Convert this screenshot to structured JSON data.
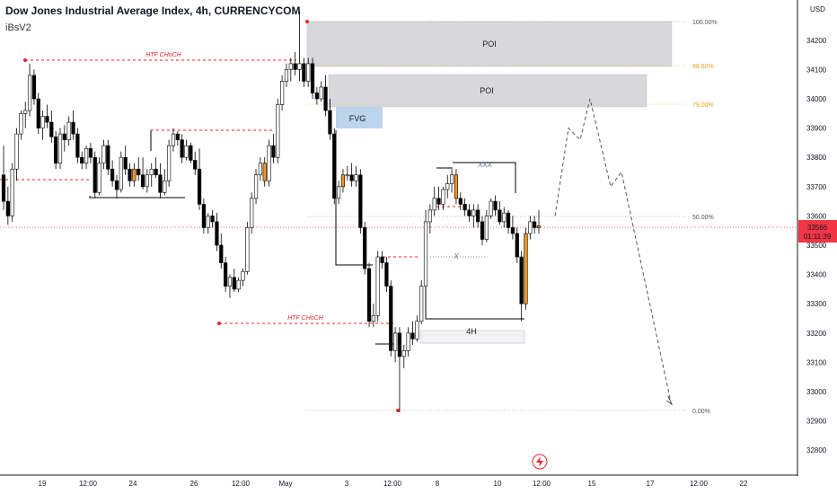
{
  "header": {
    "title": "Dow Jones Industrial Average Index, 4h, CURRENCYCOM",
    "indicator": "iBsV2"
  },
  "price_axis": {
    "currency": "USD",
    "ticks": [
      "34200",
      "34100",
      "34000",
      "33900",
      "33800",
      "33700",
      "33600",
      "33500",
      "33400",
      "33300",
      "33200",
      "33100",
      "33000",
      "32900",
      "32800"
    ],
    "last_price": "33566",
    "countdown": "01:11:39",
    "last_price_color": "#f23645"
  },
  "time_axis": {
    "labels": [
      "19",
      "12:00",
      "24",
      "26",
      "12:00",
      "May",
      "3",
      "12:00",
      "8",
      "10",
      "12:00",
      "15",
      "17",
      "12:00",
      "22"
    ]
  },
  "colors": {
    "up": "#ffffff",
    "down": "#000000",
    "highlight": "#f7941d",
    "htf": "#e8252b",
    "poi": "#d8d8dc",
    "fvg": "#bcd4ec",
    "fib": "#8a8a8a",
    "fib_gold": "#f0a21b"
  },
  "annotations": {
    "htf_choch_top": "HTF CHoCH",
    "htf_choch_bottom": "HTF CHoCH",
    "poi_upper": "POI",
    "poi_lower": "POI",
    "fvg": "FVG",
    "xxx": "XXX",
    "x": "X",
    "range_4h": "4H",
    "fib_100": "100.00%",
    "fib_886": "88.60%",
    "fib_79": "79.00%",
    "fib_50": "50.00%",
    "fib_0": "0.00%"
  },
  "chart_data": {
    "type": "candlestick",
    "title": "Dow Jones Industrial Average Index, 4h, CURRENCYCOM",
    "y_unit": "USD",
    "ylim": [
      32700,
      34300
    ],
    "fib_levels": {
      "100.00%": 34300,
      "88.60%": 34144,
      "79.00%": 34012,
      "50.00%": 33615,
      "0.00%": 32930
    },
    "candles": [
      [
        33740,
        33840,
        33620,
        33650
      ],
      [
        33650,
        33700,
        33570,
        33600
      ],
      [
        33600,
        33780,
        33580,
        33760
      ],
      [
        33760,
        33900,
        33720,
        33880
      ],
      [
        33880,
        33960,
        33860,
        33950
      ],
      [
        33950,
        33990,
        33900,
        33960
      ],
      [
        33960,
        34120,
        33940,
        34080
      ],
      [
        34080,
        34100,
        33980,
        34000
      ],
      [
        34000,
        34020,
        33880,
        33900
      ],
      [
        33900,
        33960,
        33860,
        33940
      ],
      [
        33940,
        33980,
        33900,
        33920
      ],
      [
        33920,
        33960,
        33850,
        33870
      ],
      [
        33870,
        33890,
        33760,
        33780
      ],
      [
        33780,
        33900,
        33760,
        33880
      ],
      [
        33880,
        33910,
        33820,
        33860
      ],
      [
        33860,
        33940,
        33840,
        33920
      ],
      [
        33920,
        33960,
        33860,
        33880
      ],
      [
        33880,
        33900,
        33780,
        33800
      ],
      [
        33800,
        33820,
        33760,
        33780
      ],
      [
        33780,
        33840,
        33760,
        33830
      ],
      [
        33830,
        33850,
        33780,
        33800
      ],
      [
        33800,
        33820,
        33660,
        33680
      ],
      [
        33680,
        33800,
        33670,
        33780
      ],
      [
        33780,
        33860,
        33760,
        33840
      ],
      [
        33840,
        33860,
        33740,
        33760
      ],
      [
        33760,
        33790,
        33700,
        33720
      ],
      [
        33720,
        33740,
        33660,
        33690
      ],
      [
        33690,
        33820,
        33680,
        33800
      ],
      [
        33800,
        33840,
        33740,
        33760
      ],
      [
        33760,
        33780,
        33700,
        33720
      ],
      [
        33720,
        33780,
        33700,
        33760
      ],
      [
        33760,
        33800,
        33720,
        33740
      ],
      [
        33740,
        33800,
        33690,
        33700
      ],
      [
        33700,
        33760,
        33680,
        33740
      ],
      [
        33740,
        33780,
        33700,
        33760
      ],
      [
        33760,
        33800,
        33730,
        33740
      ],
      [
        33740,
        33780,
        33660,
        33680
      ],
      [
        33680,
        33760,
        33670,
        33720
      ],
      [
        33720,
        33860,
        33700,
        33840
      ],
      [
        33840,
        33900,
        33820,
        33880
      ],
      [
        33880,
        33890,
        33840,
        33860
      ],
      [
        33860,
        33880,
        33780,
        33800
      ],
      [
        33800,
        33860,
        33790,
        33840
      ],
      [
        33840,
        33850,
        33780,
        33790
      ],
      [
        33790,
        33820,
        33740,
        33760
      ],
      [
        33760,
        33830,
        33620,
        33640
      ],
      [
        33640,
        33660,
        33540,
        33560
      ],
      [
        33560,
        33610,
        33540,
        33600
      ],
      [
        33600,
        33620,
        33560,
        33580
      ],
      [
        33580,
        33610,
        33480,
        33500
      ],
      [
        33500,
        33540,
        33420,
        33440
      ],
      [
        33440,
        33460,
        33340,
        33360
      ],
      [
        33360,
        33400,
        33320,
        33390
      ],
      [
        33390,
        33420,
        33340,
        33350
      ],
      [
        33350,
        33390,
        33340,
        33380
      ],
      [
        33380,
        33420,
        33360,
        33410
      ],
      [
        33410,
        33580,
        33400,
        33560
      ],
      [
        33560,
        33680,
        33540,
        33660
      ],
      [
        33660,
        33760,
        33640,
        33740
      ],
      [
        33740,
        33800,
        33720,
        33780
      ],
      [
        33780,
        33800,
        33700,
        33720
      ],
      [
        33720,
        33860,
        33700,
        33840
      ],
      [
        33840,
        33880,
        33780,
        33800
      ],
      [
        33800,
        34000,
        33780,
        33980
      ],
      [
        33980,
        34080,
        33960,
        34060
      ],
      [
        34060,
        34120,
        34040,
        34100
      ],
      [
        34100,
        34140,
        34060,
        34120
      ],
      [
        34120,
        34160,
        34080,
        34100
      ],
      [
        34100,
        34300,
        34060,
        34120
      ],
      [
        34120,
        34140,
        34040,
        34060
      ],
      [
        34060,
        34140,
        34040,
        34120
      ],
      [
        34120,
        34140,
        34000,
        34020
      ],
      [
        34020,
        34040,
        33980,
        34000
      ],
      [
        34000,
        34060,
        33990,
        34040
      ],
      [
        34040,
        34080,
        33940,
        33960
      ],
      [
        33960,
        34000,
        33860,
        33880
      ],
      [
        33880,
        33900,
        33640,
        33660
      ],
      [
        33660,
        33720,
        33640,
        33700
      ],
      [
        33700,
        33760,
        33680,
        33740
      ],
      [
        33740,
        33770,
        33720,
        33740
      ],
      [
        33740,
        33780,
        33700,
        33720
      ],
      [
        33720,
        33770,
        33700,
        33740
      ],
      [
        33740,
        33760,
        33540,
        33560
      ],
      [
        33560,
        33580,
        33400,
        33420
      ],
      [
        33420,
        33440,
        33220,
        33240
      ],
      [
        33240,
        33300,
        33220,
        33260
      ],
      [
        33260,
        33480,
        33240,
        33460
      ],
      [
        33460,
        33480,
        33420,
        33440
      ],
      [
        33440,
        33460,
        33340,
        33360
      ],
      [
        33360,
        33380,
        33120,
        33140
      ],
      [
        33140,
        33220,
        33100,
        33200
      ],
      [
        33200,
        33220,
        32930,
        33120
      ],
      [
        33120,
        33160,
        33080,
        33140
      ],
      [
        33140,
        33220,
        33120,
        33200
      ],
      [
        33200,
        33240,
        33160,
        33180
      ],
      [
        33180,
        33260,
        33170,
        33240
      ],
      [
        33240,
        33380,
        33230,
        33360
      ],
      [
        33360,
        33620,
        33340,
        33580
      ],
      [
        33580,
        33640,
        33540,
        33620
      ],
      [
        33620,
        33700,
        33600,
        33660
      ],
      [
        33660,
        33700,
        33620,
        33640
      ],
      [
        33640,
        33700,
        33620,
        33690
      ],
      [
        33690,
        33740,
        33660,
        33710
      ],
      [
        33710,
        33760,
        33680,
        33740
      ],
      [
        33740,
        33760,
        33640,
        33660
      ],
      [
        33660,
        33680,
        33620,
        33640
      ],
      [
        33640,
        33660,
        33600,
        33620
      ],
      [
        33620,
        33640,
        33580,
        33600
      ],
      [
        33600,
        33640,
        33560,
        33620
      ],
      [
        33620,
        33640,
        33560,
        33580
      ],
      [
        33580,
        33600,
        33500,
        33520
      ],
      [
        33520,
        33620,
        33510,
        33600
      ],
      [
        33600,
        33660,
        33590,
        33650
      ],
      [
        33650,
        33670,
        33600,
        33620
      ],
      [
        33620,
        33650,
        33570,
        33580
      ],
      [
        33580,
        33630,
        33560,
        33610
      ],
      [
        33610,
        33620,
        33540,
        33560
      ],
      [
        33560,
        33600,
        33520,
        33540
      ],
      [
        33540,
        33560,
        33440,
        33460
      ],
      [
        33460,
        33480,
        33240,
        33300
      ],
      [
        33300,
        33560,
        33280,
        33540
      ],
      [
        33540,
        33600,
        33520,
        33580
      ],
      [
        33580,
        33600,
        33540,
        33560
      ],
      [
        33560,
        33620,
        33540,
        33566
      ]
    ],
    "orange_candle_indices": [
      30,
      60,
      78,
      104,
      120,
      123
    ],
    "projection_path": [
      [
        33600,
        "12:00"
      ],
      [
        33900,
        null
      ],
      [
        33860,
        null
      ],
      [
        34000,
        "15"
      ],
      [
        33700,
        null
      ],
      [
        33750,
        null
      ],
      [
        32950,
        "17"
      ]
    ]
  }
}
